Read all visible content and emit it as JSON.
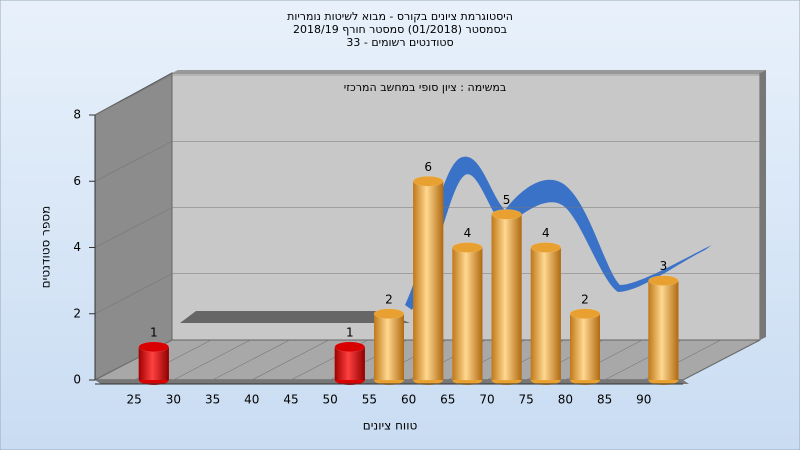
{
  "chart_data": {
    "type": "bar",
    "title": [
      "היסטוגרמת ציונים בקורס - מבוא לשיטות נומריות",
      "בסמסטר  (01/2018)  סמסטר חורף 2018/19",
      "סטודנטים רשומים - 33"
    ],
    "annotation": "במשימה : ציון סופי במחשב המרכזי",
    "x_label": "טווח ציונים",
    "y_label": "מספר סטודנטים",
    "categories": [
      "25",
      "30",
      "35",
      "40",
      "45",
      "50",
      "55",
      "60",
      "65",
      "70",
      "75",
      "80",
      "85",
      "90"
    ],
    "values": [
      1,
      0,
      0,
      0,
      0,
      1,
      2,
      6,
      4,
      5,
      4,
      2,
      0,
      3
    ],
    "colors": [
      "#d80000",
      "#d80000",
      "#d80000",
      "#d80000",
      "#d80000",
      "#d80000",
      "#e8a030",
      "#e8a030",
      "#e8a030",
      "#e8a030",
      "#e8a030",
      "#e8a030",
      "#e8a030",
      "#e8a030"
    ],
    "ylim": [
      0,
      8
    ],
    "yticks": [
      0,
      2,
      4,
      6,
      8
    ],
    "grid": true
  }
}
